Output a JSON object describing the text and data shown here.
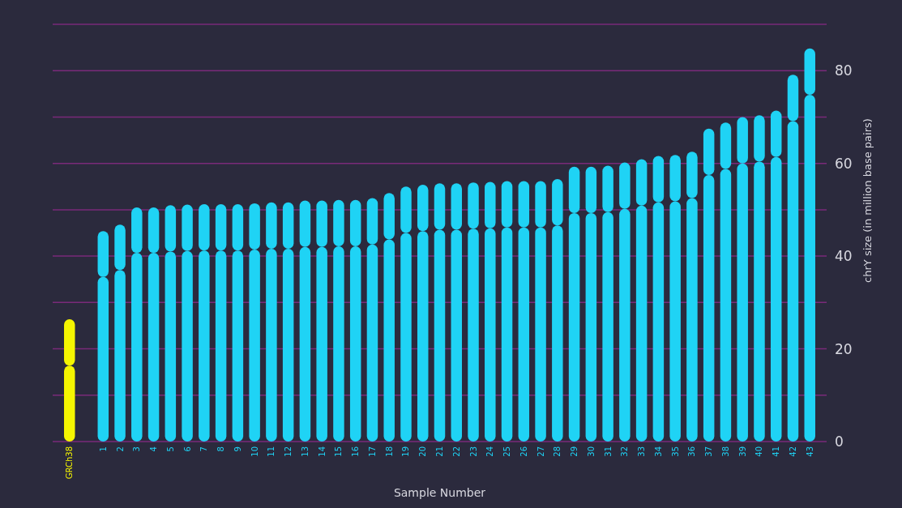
{
  "chart_data": {
    "type": "bar",
    "stacked": true,
    "xlabel": "Sample Number",
    "ylabel": "chrY size (in million base pairs)",
    "categories": [
      "GRCh38",
      "1",
      "2",
      "3",
      "4",
      "5",
      "6",
      "7",
      "8",
      "9",
      "10",
      "11",
      "12",
      "13",
      "14",
      "15",
      "16",
      "17",
      "18",
      "19",
      "20",
      "21",
      "22",
      "23",
      "24",
      "25",
      "26",
      "27",
      "28",
      "29",
      "30",
      "31",
      "32",
      "33",
      "34",
      "35",
      "36",
      "37",
      "38",
      "39",
      "40",
      "41",
      "42",
      "43"
    ],
    "series": [
      {
        "colors": [
          "#f5f500",
          "#1fd3f5",
          "#1fd3f5",
          "#1fd3f5",
          "#1fd3f5",
          "#1fd3f5",
          "#1fd3f5",
          "#1fd3f5",
          "#1fd3f5",
          "#1fd3f5",
          "#1fd3f5",
          "#1fd3f5",
          "#1fd3f5",
          "#1fd3f5",
          "#1fd3f5",
          "#1fd3f5",
          "#1fd3f5",
          "#1fd3f5",
          "#1fd3f5",
          "#1fd3f5",
          "#1fd3f5",
          "#1fd3f5",
          "#1fd3f5",
          "#1fd3f5",
          "#1fd3f5",
          "#1fd3f5",
          "#1fd3f5",
          "#1fd3f5",
          "#1fd3f5",
          "#1fd3f5",
          "#1fd3f5",
          "#1fd3f5",
          "#1fd3f5",
          "#1fd3f5",
          "#1fd3f5",
          "#1fd3f5",
          "#1fd3f5",
          "#1fd3f5",
          "#1fd3f5",
          "#1fd3f5",
          "#1fd3f5",
          "#1fd3f5",
          "#1fd3f5",
          "#1fd3f5"
        ],
        "values": [
          16.4,
          35.5,
          37,
          40.7,
          40.7,
          41,
          41.1,
          41.2,
          41.2,
          41.2,
          41.4,
          41.6,
          41.6,
          42,
          42,
          42.1,
          42.1,
          42.5,
          43.6,
          45,
          45.4,
          45.7,
          45.7,
          45.9,
          46,
          46.2,
          46.2,
          46.2,
          46.6,
          49.3,
          49.3,
          49.5,
          50.2,
          50.9,
          51.6,
          51.8,
          52.5,
          57.5,
          58.8,
          60,
          60.4,
          61.4,
          69.1,
          74.8
        ]
      },
      {
        "colors": [
          "#f5f500",
          "#1fd3f5",
          "#1fd3f5",
          "#1fd3f5",
          "#1fd3f5",
          "#1fd3f5",
          "#1fd3f5",
          "#1fd3f5",
          "#1fd3f5",
          "#1fd3f5",
          "#1fd3f5",
          "#1fd3f5",
          "#1fd3f5",
          "#1fd3f5",
          "#1fd3f5",
          "#1fd3f5",
          "#1fd3f5",
          "#1fd3f5",
          "#1fd3f5",
          "#1fd3f5",
          "#1fd3f5",
          "#1fd3f5",
          "#1fd3f5",
          "#1fd3f5",
          "#1fd3f5",
          "#1fd3f5",
          "#1fd3f5",
          "#1fd3f5",
          "#1fd3f5",
          "#1fd3f5",
          "#1fd3f5",
          "#1fd3f5",
          "#1fd3f5",
          "#1fd3f5",
          "#1fd3f5",
          "#1fd3f5",
          "#1fd3f5",
          "#1fd3f5",
          "#1fd3f5",
          "#1fd3f5",
          "#1fd3f5",
          "#1fd3f5",
          "#1fd3f5",
          "#1fd3f5"
        ],
        "values": [
          10,
          9.9,
          9.8,
          9.8,
          9.8,
          10,
          10,
          10,
          10,
          10,
          10,
          10,
          10,
          10,
          10,
          10,
          10,
          10,
          10,
          10,
          10,
          10,
          10,
          10,
          10,
          10,
          10,
          10,
          10,
          10,
          10,
          10,
          10,
          10,
          10,
          10,
          10,
          10,
          10,
          10,
          10,
          10,
          10,
          10
        ]
      }
    ],
    "ylim": [
      0,
      90
    ],
    "yticks": [
      0,
      {
        "value": 10,
        "label": null
      },
      20,
      {
        "value": 30,
        "label": null
      },
      40,
      {
        "value": 50,
        "label": null
      },
      60,
      {
        "value": 70,
        "label": null
      },
      80,
      {
        "value": 90,
        "label": null
      }
    ],
    "grid": "y"
  }
}
